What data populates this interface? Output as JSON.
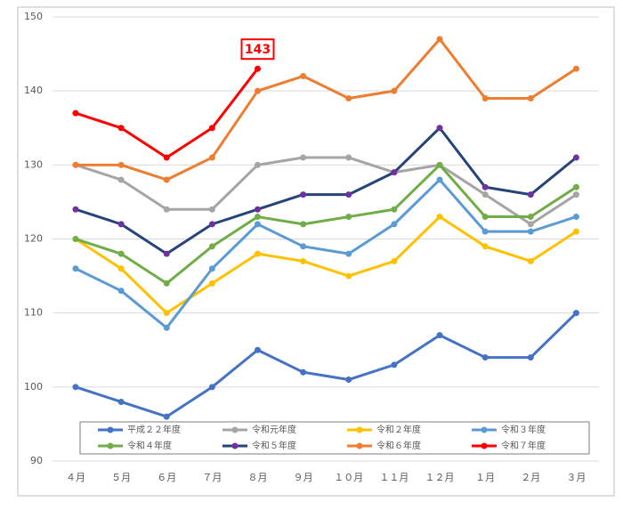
{
  "chart_data": {
    "type": "line",
    "categories": [
      "４月",
      "５月",
      "６月",
      "７月",
      "８月",
      "９月",
      "１０月",
      "１１月",
      "１２月",
      "１月",
      "２月",
      "３月"
    ],
    "series": [
      {
        "name": "平成２２年度",
        "color": "#4472c4",
        "values": [
          100,
          98,
          96,
          100,
          105,
          102,
          101,
          103,
          107,
          104,
          104,
          110
        ]
      },
      {
        "name": "令和元年度",
        "color": "#a5a5a5",
        "values": [
          130,
          128,
          124,
          124,
          130,
          131,
          131,
          129,
          130,
          126,
          122,
          126
        ]
      },
      {
        "name": "令和２年度",
        "color": "#ffc000",
        "values": [
          120,
          116,
          110,
          114,
          118,
          117,
          115,
          117,
          123,
          119,
          117,
          121
        ]
      },
      {
        "name": "令和３年度",
        "color": "#5b9bd5",
        "values": [
          116,
          113,
          108,
          116,
          122,
          119,
          118,
          122,
          128,
          121,
          121,
          123
        ]
      },
      {
        "name": "令和４年度",
        "color": "#70ad47",
        "values": [
          120,
          118,
          114,
          119,
          123,
          122,
          123,
          124,
          130,
          123,
          123,
          127
        ]
      },
      {
        "name": "令和５年度",
        "color": "#264478",
        "marker_color": "#7030a0",
        "values": [
          124,
          122,
          118,
          122,
          124,
          126,
          126,
          129,
          135,
          127,
          126,
          131
        ]
      },
      {
        "name": "令和６年度",
        "color": "#ed7d31",
        "values": [
          130,
          130,
          128,
          131,
          140,
          142,
          139,
          140,
          147,
          139,
          139,
          143
        ]
      },
      {
        "name": "令和７年度",
        "color": "#ff0000",
        "values": [
          137,
          135,
          131,
          135,
          143,
          null,
          null,
          null,
          null,
          null,
          null,
          null
        ]
      }
    ],
    "ylim": [
      90,
      150
    ],
    "yticks": [
      90,
      100,
      110,
      120,
      130,
      140,
      150
    ],
    "grid": true
  }
}
